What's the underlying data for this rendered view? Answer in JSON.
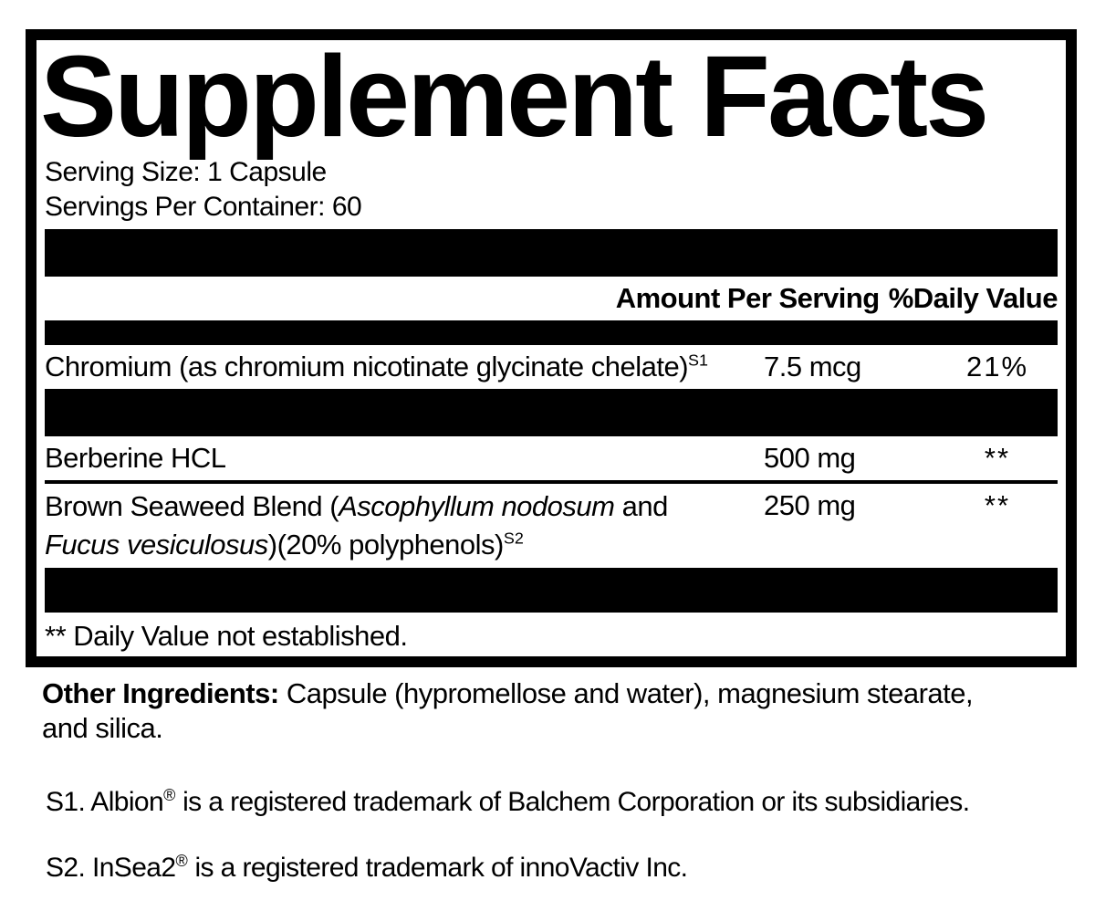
{
  "title": "Supplement Facts",
  "serving_info": {
    "serving_size": "Serving Size: 1 Capsule",
    "servings_per_container": "Servings Per Container: 60"
  },
  "column_headers": {
    "amount_per_serving": "Amount Per Serving",
    "daily_value": "%Daily Value"
  },
  "ingredient_rows": [
    {
      "name": "Chromium (as chromium nicotinate glycinate chelate)",
      "footnote_ref": "S1",
      "amount": "7.5 mcg",
      "daily_value": "21%"
    },
    {
      "name": "Berberine HCL",
      "amount": "500 mg",
      "daily_value": "**"
    },
    {
      "name_part1": "Brown Seaweed Blend (",
      "name_italic1": "Ascophyllum nodosum",
      "name_part2": " and",
      "name_italic2": "Fucus vesiculosus",
      "name_part3": ")(20% polyphenols)",
      "footnote_ref": "S2",
      "amount": "250 mg",
      "daily_value": "**"
    }
  ],
  "footnote": "** Daily Value not established.",
  "other_ingredients": {
    "label": "Other Ingredients:",
    "line1": " Capsule (hypromellose and water), magnesium stearate,",
    "line2": "and silica."
  },
  "trademark_notes": [
    {
      "name": "S1. Albion",
      "registered_symbol": "®",
      "text": " is a registered trademark of Balchem Corporation or its subsidiaries."
    },
    {
      "name": "S2. InSea2",
      "registered_symbol": "®",
      "text": " is a registered trademark of innoVactiv Inc."
    }
  ],
  "colors": {
    "text": "#000000",
    "background": "#ffffff"
  }
}
